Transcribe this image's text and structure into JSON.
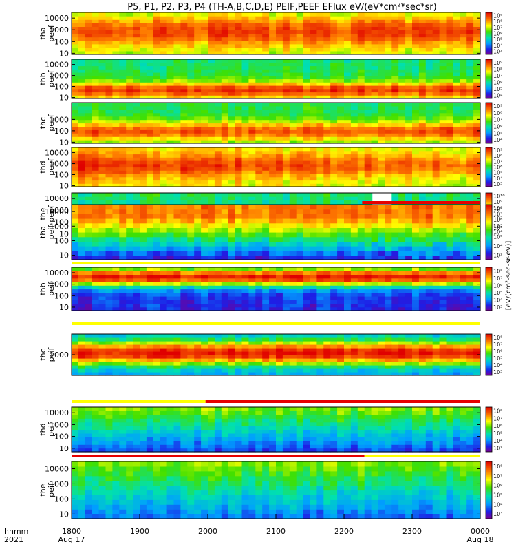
{
  "title": "P5, P1, P2, P3, P4 (TH-A,B,C,D,E) PEIF,PEEF EFlux eV/(eV*cm²*sec*sr)",
  "cbar_unit": "[eV/(cm²-sec-sr-eV)]",
  "colors": {
    "flag_bad": "#e60000",
    "flag_good": "#ffff00",
    "text": "#000000"
  },
  "time_axis": {
    "hhmm_label": "hhmm",
    "year_label": "2021",
    "ticks": [
      "1800",
      "1900",
      "2000",
      "2100",
      "2200",
      "2300",
      "0000"
    ],
    "date_labels": [
      "Aug 17",
      "Aug 18"
    ]
  },
  "chart_data": {
    "type": "heatmap",
    "time_range": [
      "2021-08-17 18:00",
      "2021-08-18 00:00"
    ],
    "panels": [
      {
        "probe": "tha",
        "product": "peef",
        "yscale": "log",
        "ylim": [
          8,
          30000
        ],
        "ytick_labels": [
          "10",
          "100",
          "1000",
          "10000"
        ],
        "cbar_labels": [
          "10⁹",
          "10⁸",
          "10⁷",
          "10⁶",
          "10⁵",
          "10⁴",
          "10³"
        ]
      },
      {
        "probe": "thb",
        "product": "peef",
        "yscale": "log",
        "ylim": [
          8,
          30000
        ],
        "ytick_labels": [
          "10",
          "100",
          "1000",
          "10000"
        ],
        "cbar_labels": [
          "10⁹",
          "10⁸",
          "10⁷",
          "10⁶",
          "10⁵",
          "10⁴"
        ]
      },
      {
        "probe": "thc",
        "product": "peef",
        "yscale": "log",
        "ylim": [
          8,
          30000
        ],
        "ytick_labels": [
          "10",
          "100",
          "1000"
        ],
        "cbar_labels": [
          "10⁹",
          "10⁸",
          "10⁷",
          "10⁶",
          "10⁵",
          "10⁴"
        ]
      },
      {
        "probe": "thd",
        "product": "peef",
        "yscale": "log",
        "ylim": [
          8,
          30000
        ],
        "ytick_labels": [
          "10",
          "100",
          "1000",
          "10000"
        ],
        "cbar_labels": [
          "10⁹",
          "10⁸",
          "10⁷",
          "10⁶",
          "10⁵",
          "10⁴",
          "10³"
        ]
      },
      {
        "probe": "the",
        "product": "peef",
        "yscale": "log",
        "ylim": [
          8,
          30000
        ],
        "ytick_labels": [
          "10",
          "100",
          "1000",
          "10000"
        ],
        "cbar_labels": [
          "10¹⁰",
          "10⁹",
          "10⁸",
          "10⁷",
          "10⁶",
          "10⁵",
          "10⁴"
        ]
      },
      {
        "probe": "tha",
        "product": "peif",
        "yscale": "log",
        "ylim": [
          5,
          30000
        ],
        "ytick_labels": [
          "10",
          "100",
          "1000",
          "10000"
        ],
        "cbar_labels": [
          "10⁸",
          "10⁷",
          "10⁶",
          "10⁵",
          "10⁴",
          "10³"
        ]
      },
      {
        "probe": "thb",
        "product": "peif",
        "yscale": "log",
        "ylim": [
          5,
          30000
        ],
        "ytick_labels": [
          "10",
          "100",
          "1000",
          "10000"
        ],
        "cbar_labels": [
          "10⁸",
          "10⁷",
          "10⁶",
          "10⁵",
          "10⁴",
          "10³"
        ]
      },
      {
        "probe": "thc",
        "product": "peif",
        "yscale": "log",
        "ylim": [
          200,
          5000
        ],
        "ytick_labels": [
          "1000"
        ],
        "cbar_labels": [
          "10⁸",
          "10⁷",
          "10⁶",
          "10⁵",
          "10⁴",
          "10³"
        ]
      },
      {
        "probe": "thd",
        "product": "peif",
        "yscale": "log",
        "ylim": [
          5,
          30000
        ],
        "ytick_labels": [
          "10",
          "100",
          "1000",
          "10000"
        ],
        "cbar_labels": [
          "10⁸",
          "10⁷",
          "10⁶",
          "10⁵",
          "10⁴",
          "10³"
        ]
      },
      {
        "probe": "the",
        "product": "peif",
        "yscale": "log",
        "ylim": [
          5,
          30000
        ],
        "ytick_labels": [
          "10",
          "100",
          "1000",
          "10000"
        ],
        "cbar_labels": [
          "10⁸",
          "10⁷",
          "10⁶",
          "10⁵",
          "10⁴",
          "10³"
        ]
      }
    ],
    "flag_bars": [
      {
        "segments": [
          {
            "start": "2216",
            "end": "0000",
            "state": "bad"
          }
        ]
      },
      {
        "segments": [
          {
            "start": "1800",
            "end": "0000",
            "state": "good"
          }
        ]
      },
      {
        "segments": [
          {
            "start": "1800",
            "end": "0000",
            "state": "good"
          }
        ]
      },
      {
        "segments": [
          {
            "start": "1800",
            "end": "1958",
            "state": "good"
          },
          {
            "start": "1958",
            "end": "0000",
            "state": "bad"
          }
        ]
      },
      {
        "segments": [
          {
            "start": "1800",
            "end": "2218",
            "state": "bad"
          },
          {
            "start": "2218",
            "end": "0000",
            "state": "good"
          }
        ]
      }
    ]
  }
}
